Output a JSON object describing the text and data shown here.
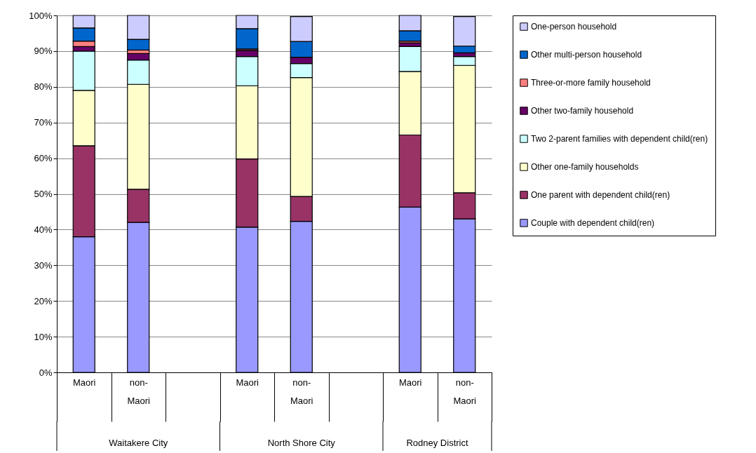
{
  "chart_data": {
    "type": "bar",
    "stacked": true,
    "categories": [
      "Maori",
      "non-Maori",
      null,
      "Maori",
      "non-Maori",
      null,
      "Maori",
      "non-Maori"
    ],
    "series": [
      {
        "name": "Couple with dependent child(ren)",
        "color": "#9999ff",
        "values": [
          38,
          42,
          null,
          40.7,
          42.3,
          null,
          46.3,
          43
        ]
      },
      {
        "name": "One parent with dependent child(ren)",
        "color": "#993366",
        "values": [
          25.5,
          9.3,
          null,
          19.1,
          7,
          null,
          20.2,
          7.3
        ]
      },
      {
        "name": "Other one-family households",
        "color": "#ffffcc",
        "values": [
          15.5,
          29.4,
          null,
          20.5,
          33.3,
          null,
          17.8,
          35.7
        ]
      },
      {
        "name": "Two 2-parent families with dependent child(ren)",
        "color": "#ccffff",
        "values": [
          11,
          6.8,
          null,
          8.2,
          3.9,
          null,
          7,
          2.5
        ]
      },
      {
        "name": "Other two-family household",
        "color": "#660066",
        "values": [
          1.3,
          1.8,
          null,
          1.7,
          1.8,
          null,
          1,
          1
        ]
      },
      {
        "name": "Three-or-more family household",
        "color": "#ff8080",
        "values": [
          1.5,
          1,
          null,
          0.4,
          null,
          null,
          0.5,
          null
        ]
      },
      {
        "name": "Other multi-person household",
        "color": "#0066cc",
        "values": [
          3.7,
          3,
          null,
          5.7,
          4.4,
          null,
          2.9,
          1.9
        ]
      },
      {
        "name": "One-person household",
        "color": "#ccccff",
        "values": [
          3.5,
          6.7,
          null,
          3.7,
          7,
          null,
          4.3,
          8.3
        ]
      }
    ],
    "ylim": [
      0,
      100
    ],
    "yticks": [
      {
        "value": 0,
        "label": "0%"
      },
      {
        "value": 10,
        "label": "10%"
      },
      {
        "value": 20,
        "label": "20%"
      },
      {
        "value": 30,
        "label": "30%"
      },
      {
        "value": 40,
        "label": "40%"
      },
      {
        "value": 50,
        "label": "50%"
      },
      {
        "value": 60,
        "label": "60%"
      },
      {
        "value": 70,
        "label": "70%"
      },
      {
        "value": 80,
        "label": "80%"
      },
      {
        "value": 90,
        "label": "90%"
      },
      {
        "value": 100,
        "label": "100%"
      }
    ],
    "grid": "y",
    "legend": "right",
    "annotations": [
      "Waitakere City",
      "North Shore City",
      "Rodney District"
    ]
  }
}
